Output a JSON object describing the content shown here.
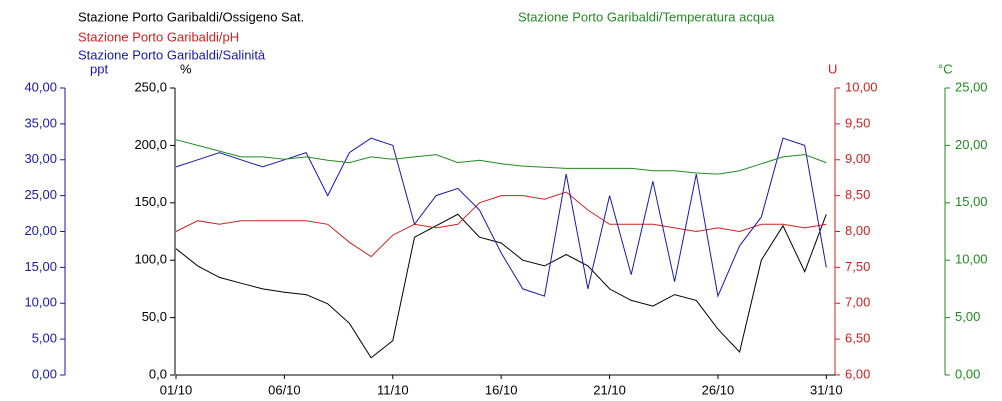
{
  "chart_data": {
    "type": "line",
    "x": [
      1,
      2,
      3,
      4,
      5,
      6,
      7,
      8,
      9,
      10,
      11,
      12,
      13,
      14,
      15,
      16,
      17,
      18,
      19,
      20,
      21,
      22,
      23,
      24,
      25,
      26,
      27,
      28,
      29,
      30,
      31
    ],
    "xlim": [
      1,
      31.4
    ],
    "xticks": [
      {
        "value": 1,
        "label": "01/10"
      },
      {
        "value": 6,
        "label": "06/10"
      },
      {
        "value": 11,
        "label": "11/10"
      },
      {
        "value": 16,
        "label": "16/10"
      },
      {
        "value": 21,
        "label": "21/10"
      },
      {
        "value": 26,
        "label": "26/10"
      },
      {
        "value": 31,
        "label": "31/10"
      }
    ],
    "axes": [
      {
        "label": "ppt",
        "color": "#1a1aa8",
        "lim": [
          0,
          40
        ],
        "ticks": [
          {
            "value": 0,
            "label": "0,00"
          },
          {
            "value": 5,
            "label": "5,00"
          },
          {
            "value": 10,
            "label": "10,00"
          },
          {
            "value": 15,
            "label": "15,00"
          },
          {
            "value": 20,
            "label": "20,00"
          },
          {
            "value": 25,
            "label": "25,00"
          },
          {
            "value": 30,
            "label": "30,00"
          },
          {
            "value": 35,
            "label": "35,00"
          },
          {
            "value": 40,
            "label": "40,00"
          }
        ]
      },
      {
        "label": "%",
        "color": "#000000",
        "lim": [
          0,
          250
        ],
        "ticks": [
          {
            "value": 0,
            "label": "0,0"
          },
          {
            "value": 50,
            "label": "50,0"
          },
          {
            "value": 100,
            "label": "100,0"
          },
          {
            "value": 150,
            "label": "150,0"
          },
          {
            "value": 200,
            "label": "200,0"
          },
          {
            "value": 250,
            "label": "250,0"
          }
        ]
      },
      {
        "label": "U",
        "color": "#cc2222",
        "lim": [
          6,
          10
        ],
        "ticks": [
          {
            "value": 6,
            "label": "6,00"
          },
          {
            "value": 6.5,
            "label": "6,50"
          },
          {
            "value": 7,
            "label": "7,00"
          },
          {
            "value": 7.5,
            "label": "7,50"
          },
          {
            "value": 8,
            "label": "8,00"
          },
          {
            "value": 8.5,
            "label": "8,50"
          },
          {
            "value": 9,
            "label": "9,00"
          },
          {
            "value": 9.5,
            "label": "9,50"
          },
          {
            "value": 10,
            "label": "10,00"
          }
        ]
      },
      {
        "label": "°C",
        "color": "#228b22",
        "lim": [
          0,
          25
        ],
        "ticks": [
          {
            "value": 0,
            "label": "0,00"
          },
          {
            "value": 5,
            "label": "5,00"
          },
          {
            "value": 10,
            "label": "10,00"
          },
          {
            "value": 15,
            "label": "15,00"
          },
          {
            "value": 20,
            "label": "20,00"
          },
          {
            "value": 25,
            "label": "25,00"
          }
        ]
      }
    ],
    "series": [
      {
        "name": "Stazione Porto Garibaldi/Ossigeno Sat.",
        "color": "#000000",
        "axis": 1,
        "values": [
          110,
          95,
          85,
          80,
          75,
          72,
          70,
          62,
          45,
          15,
          30,
          120,
          130,
          140,
          120,
          115,
          100,
          95,
          105,
          95,
          75,
          65,
          60,
          70,
          65,
          40,
          20,
          100,
          130,
          90,
          140
        ]
      },
      {
        "name": "Stazione Porto Garibaldi/pH",
        "color": "#cc2222",
        "axis": 2,
        "values": [
          8.0,
          8.15,
          8.1,
          8.15,
          8.15,
          8.15,
          8.15,
          8.1,
          7.85,
          7.65,
          7.95,
          8.1,
          8.05,
          8.1,
          8.4,
          8.5,
          8.5,
          8.45,
          8.55,
          8.3,
          8.1,
          8.1,
          8.1,
          8.05,
          8.0,
          8.05,
          8.0,
          8.1,
          8.1,
          8.05,
          8.1
        ]
      },
      {
        "name": "Stazione Porto Garibaldi/Salinità",
        "color": "#1a1aa8",
        "axis": 0,
        "values": [
          29,
          30,
          31,
          30,
          29,
          30,
          31,
          25,
          31,
          33,
          32,
          21,
          25,
          26,
          23,
          17,
          12,
          11,
          28,
          12,
          25,
          14,
          27,
          13,
          28,
          11,
          18,
          22,
          33,
          32,
          15
        ]
      },
      {
        "name": "Stazione Porto Garibaldi/Temperatura acqua",
        "color": "#228b22",
        "axis": 3,
        "values": [
          20.5,
          20,
          19.5,
          19,
          19,
          18.8,
          19,
          18.7,
          18.5,
          19,
          18.8,
          19,
          19.2,
          18.5,
          18.7,
          18.4,
          18.2,
          18.1,
          18,
          18,
          18,
          18,
          17.8,
          17.8,
          17.6,
          17.5,
          17.8,
          18.4,
          19,
          19.2,
          18.5
        ]
      }
    ]
  }
}
